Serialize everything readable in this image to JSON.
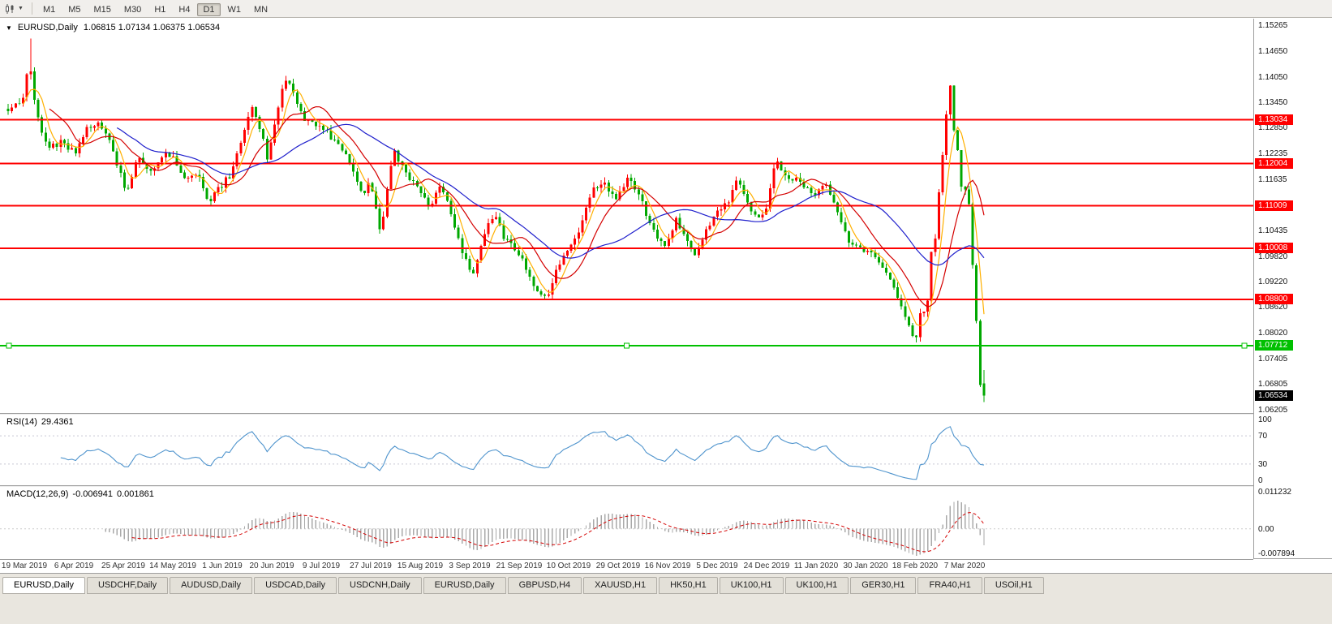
{
  "icons": {
    "symbol_dropdown": "▼",
    "chart_type_caret": "▼"
  },
  "toolbar": {
    "timeframes": [
      "M1",
      "M5",
      "M15",
      "M30",
      "H1",
      "H4",
      "D1",
      "W1",
      "MN"
    ],
    "active_timeframe": "D1"
  },
  "chart": {
    "title": "EURUSD,Daily",
    "ohlc_text": "1.06815 1.07134 1.06375 1.06534",
    "open": 1.06815,
    "high": 1.07134,
    "low": 1.06375,
    "close": 1.06534,
    "price_axis": [
      1.15265,
      1.1465,
      1.1405,
      1.1345,
      1.1285,
      1.12235,
      1.11635,
      1.10435,
      1.0982,
      1.0922,
      1.0862,
      1.0802,
      1.07405,
      1.06805,
      1.06205
    ],
    "hlines": [
      {
        "price": 1.13034,
        "color": "#FF0000"
      },
      {
        "price": 1.12004,
        "color": "#FF0000"
      },
      {
        "price": 1.11009,
        "color": "#FF0000"
      },
      {
        "price": 1.10008,
        "color": "#FF0000"
      },
      {
        "price": 1.088,
        "color": "#FF0000"
      },
      {
        "price": 1.07712,
        "color": "#00C000",
        "handles": true
      }
    ],
    "current_price_color": "#000000",
    "dates": [
      "19 Mar 2019",
      "6 Apr 2019",
      "25 Apr 2019",
      "14 May 2019",
      "1 Jun 2019",
      "20 Jun 2019",
      "9 Jul 2019",
      "27 Jul 2019",
      "15 Aug 2019",
      "3 Sep 2019",
      "21 Sep 2019",
      "10 Oct 2019",
      "29 Oct 2019",
      "16 Nov 2019",
      "5 Dec 2019",
      "24 Dec 2019",
      "11 Jan 2020",
      "30 Jan 2020",
      "18 Feb 2020",
      "7 Mar 2020"
    ]
  },
  "rsi": {
    "label": "RSI(14)",
    "value_text": "29.4361",
    "value": 29.4361,
    "levels": [
      100,
      70,
      30,
      0
    ],
    "guides": [
      70,
      30
    ],
    "color": "#4F94CD"
  },
  "macd": {
    "label": "MACD(12,26,9)",
    "value_text": "-0.006941",
    "signal_text": "0.001861",
    "value": -0.006941,
    "signal": 0.001861,
    "axis": [
      {
        "label": "0.011232",
        "value": 0.011232
      },
      {
        "label": "0.00",
        "value": 0
      },
      {
        "label": "-0.007894",
        "value": -0.007894
      }
    ],
    "histogram_color": "#a9a9a9",
    "signal_color": "#d40000"
  },
  "tabs": [
    "EURUSD,Daily",
    "USDCHF,Daily",
    "AUDUSD,Daily",
    "USDCAD,Daily",
    "USDCNH,Daily",
    "EURUSD,Daily",
    "GBPUSD,H4",
    "XAUUSD,H1",
    "HK50,H1",
    "UK100,H1",
    "UK100,H1",
    "GER30,H1",
    "FRA40,H1",
    "USOil,H1"
  ],
  "active_tab_index": 0,
  "chart_data": {
    "type": "candlestick",
    "symbol": "EURUSD",
    "period": "Daily",
    "bars": 261,
    "y_range": [
      1.0612,
      1.1542
    ],
    "macd_range": [
      -0.007894,
      0.011232
    ],
    "high_extreme": 1.1495,
    "bull_color": "#FF0000",
    "bear_color": "#00A800",
    "ma": [
      {
        "window": 5,
        "color": "#FFB000"
      },
      {
        "window": 12,
        "color": "#D40000"
      },
      {
        "window": 30,
        "color": "#1F1FCC"
      }
    ],
    "anchors": [
      [
        0.0,
        1.133
      ],
      [
        0.014,
        1.1345
      ],
      [
        0.022,
        1.144
      ],
      [
        0.028,
        1.133
      ],
      [
        0.04,
        1.1235
      ],
      [
        0.054,
        1.125
      ],
      [
        0.069,
        1.1225
      ],
      [
        0.082,
        1.1285
      ],
      [
        0.094,
        1.13
      ],
      [
        0.108,
        1.123
      ],
      [
        0.121,
        1.113
      ],
      [
        0.133,
        1.122
      ],
      [
        0.147,
        1.118
      ],
      [
        0.159,
        1.1225
      ],
      [
        0.171,
        1.121
      ],
      [
        0.183,
        1.116
      ],
      [
        0.194,
        1.1185
      ],
      [
        0.205,
        1.111
      ],
      [
        0.216,
        1.114
      ],
      [
        0.228,
        1.1175
      ],
      [
        0.239,
        1.125
      ],
      [
        0.249,
        1.134
      ],
      [
        0.257,
        1.1295
      ],
      [
        0.266,
        1.121
      ],
      [
        0.275,
        1.1315
      ],
      [
        0.283,
        1.14
      ],
      [
        0.292,
        1.137
      ],
      [
        0.304,
        1.13
      ],
      [
        0.321,
        1.1285
      ],
      [
        0.337,
        1.125
      ],
      [
        0.351,
        1.1205
      ],
      [
        0.363,
        1.113
      ],
      [
        0.371,
        1.1155
      ],
      [
        0.382,
        1.104
      ],
      [
        0.389,
        1.115
      ],
      [
        0.396,
        1.123
      ],
      [
        0.407,
        1.1175
      ],
      [
        0.422,
        1.114
      ],
      [
        0.433,
        1.1095
      ],
      [
        0.443,
        1.1155
      ],
      [
        0.454,
        1.1085
      ],
      [
        0.465,
        1.0995
      ],
      [
        0.476,
        1.093
      ],
      [
        0.487,
        1.1035
      ],
      [
        0.498,
        1.108
      ],
      [
        0.509,
        1.102
      ],
      [
        0.523,
        1.099
      ],
      [
        0.534,
        1.0935
      ],
      [
        0.544,
        1.09
      ],
      [
        0.552,
        1.088
      ],
      [
        0.561,
        1.095
      ],
      [
        0.573,
        1.099
      ],
      [
        0.587,
        1.105
      ],
      [
        0.599,
        1.114
      ],
      [
        0.611,
        1.115
      ],
      [
        0.624,
        1.111
      ],
      [
        0.633,
        1.1165
      ],
      [
        0.644,
        1.114
      ],
      [
        0.656,
        1.107
      ],
      [
        0.667,
        1.102
      ],
      [
        0.675,
        1.1005
      ],
      [
        0.685,
        1.107
      ],
      [
        0.696,
        1.1015
      ],
      [
        0.705,
        1.0982
      ],
      [
        0.716,
        1.105
      ],
      [
        0.726,
        1.108
      ],
      [
        0.737,
        1.1105
      ],
      [
        0.747,
        1.117
      ],
      [
        0.756,
        1.112
      ],
      [
        0.765,
        1.1075
      ],
      [
        0.776,
        1.109
      ],
      [
        0.787,
        1.1215
      ],
      [
        0.795,
        1.117
      ],
      [
        0.809,
        1.116
      ],
      [
        0.826,
        1.112
      ],
      [
        0.837,
        1.115
      ],
      [
        0.849,
        1.1095
      ],
      [
        0.861,
        1.102
      ],
      [
        0.876,
        1.1
      ],
      [
        0.889,
        1.0975
      ],
      [
        0.901,
        1.0935
      ],
      [
        0.911,
        1.089
      ],
      [
        0.92,
        1.084
      ],
      [
        0.93,
        1.078
      ],
      [
        0.9346,
        1.0846
      ],
      [
        0.9385,
        1.0855
      ],
      [
        0.9423,
        1.088
      ],
      [
        0.9462,
        1.0995
      ],
      [
        0.95,
        1.1025
      ],
      [
        0.9538,
        1.1135
      ],
      [
        0.9562,
        1.117
      ],
      [
        0.9585,
        1.124
      ],
      [
        0.961,
        1.1284
      ],
      [
        0.964,
        1.144
      ],
      [
        0.9677,
        1.128
      ],
      [
        0.9715,
        1.127
      ],
      [
        0.9754,
        1.1185
      ],
      [
        0.9792,
        1.1105
      ],
      [
        0.9831,
        1.118
      ],
      [
        0.9869,
        1.0995
      ],
      [
        0.9908,
        1.0918
      ],
      [
        0.9946,
        1.0692
      ],
      [
        1.0,
        1.0653
      ]
    ]
  }
}
